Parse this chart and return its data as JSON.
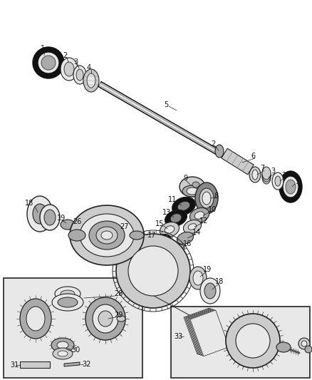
{
  "background_color": "#ffffff",
  "line_color": "#222222",
  "dark_color": "#111111",
  "gray1": "#555555",
  "gray2": "#888888",
  "gray3": "#aaaaaa",
  "gray4": "#cccccc",
  "gray5": "#e8e8e8",
  "figsize": [
    4.38,
    5.33
  ],
  "dpi": 100
}
